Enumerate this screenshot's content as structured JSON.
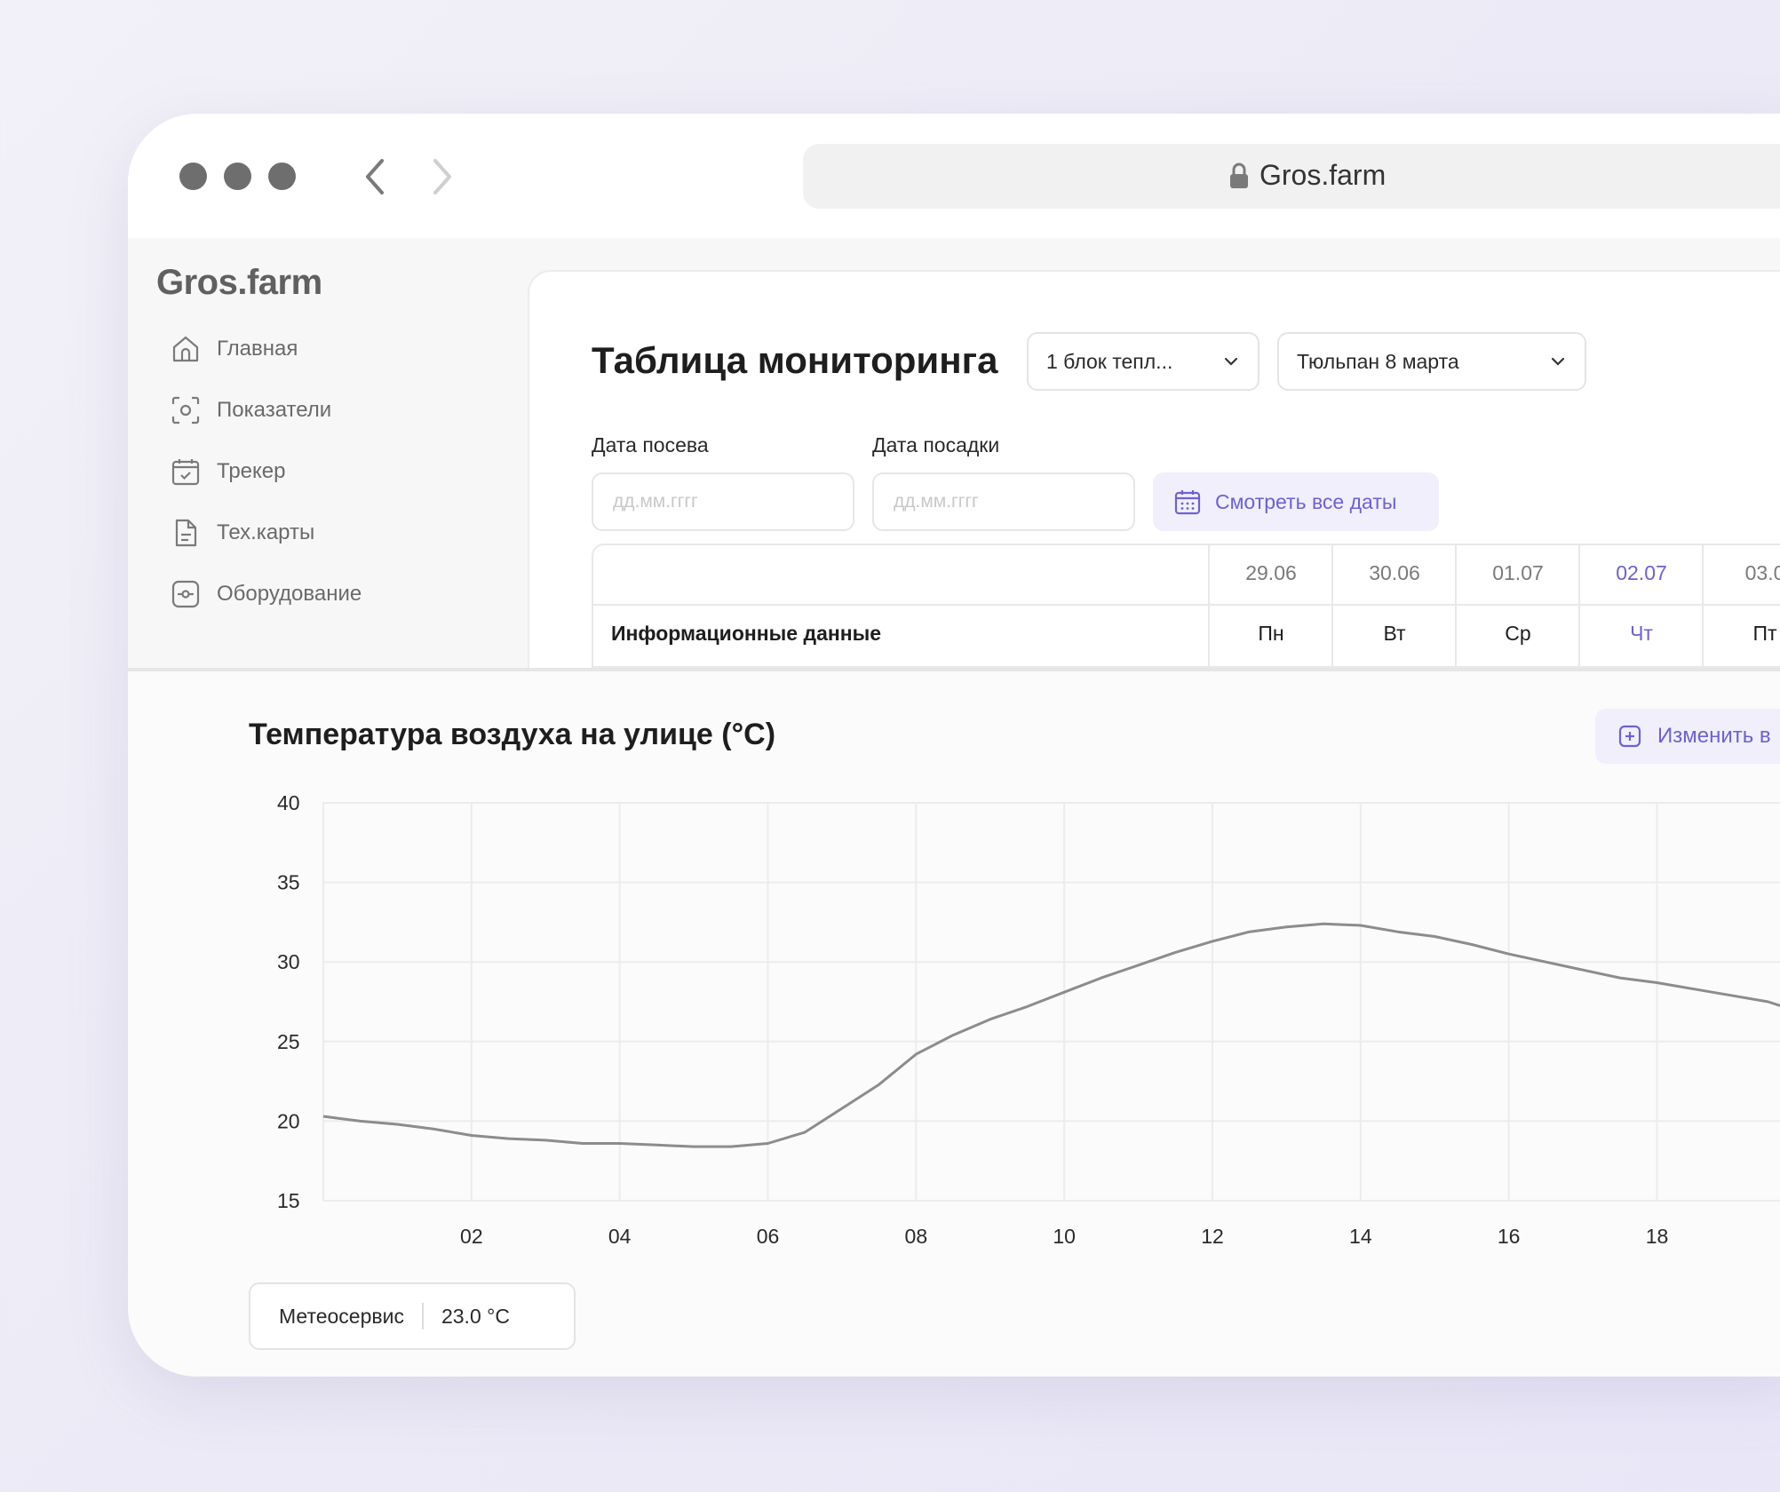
{
  "browser": {
    "url": "Gros.farm"
  },
  "app": {
    "logo": "Gros.farm",
    "sidebar": {
      "items": [
        {
          "label": "Главная",
          "icon": "home-icon"
        },
        {
          "label": "Показатели",
          "icon": "indicators-icon"
        },
        {
          "label": "Трекер",
          "icon": "calendar-check-icon"
        },
        {
          "label": "Тех.карты",
          "icon": "document-icon"
        },
        {
          "label": "Оборудование",
          "icon": "equipment-icon"
        }
      ]
    },
    "monitoring": {
      "title": "Таблица мониторинга",
      "greenhouse_select": "1 блок тепл...",
      "crop_select": "Тюльпан 8 марта",
      "sowing_label": "Дата посева",
      "sowing_placeholder": "дд.мм.гггг",
      "planting_label": "Дата посадки",
      "planting_placeholder": "дд.мм.гггг",
      "all_dates_button": "Смотреть все даты",
      "table": {
        "info_label": "Информационные данные",
        "columns": [
          {
            "date": "29.06",
            "day": "Пн",
            "active": false
          },
          {
            "date": "30.06",
            "day": "Вт",
            "active": false
          },
          {
            "date": "01.07",
            "day": "Ср",
            "active": false
          },
          {
            "date": "02.07",
            "day": "Чт",
            "active": true
          },
          {
            "date": "03.0",
            "day": "Пт",
            "active": false
          }
        ]
      }
    },
    "chart_section": {
      "edit_button": "Изменить в",
      "meteo_label": "Метеосервис",
      "meteo_value": "23.0 °C"
    }
  },
  "colors": {
    "accent": "#6d61d6",
    "line": "#8c8c8c"
  },
  "chart_data": {
    "type": "line",
    "title": "Температура воздуха на улице (°C)",
    "xlabel": "",
    "ylabel": "",
    "ylim": [
      15,
      40
    ],
    "xlim": [
      0,
      19.9
    ],
    "y_ticks": [
      "15",
      "20",
      "25",
      "30",
      "35",
      "40"
    ],
    "x_ticks": [
      "02",
      "04",
      "06",
      "08",
      "10",
      "12",
      "14",
      "16",
      "18"
    ],
    "grid": true,
    "series": [
      {
        "x": [
          0,
          0.5,
          1,
          1.5,
          2,
          2.5,
          3,
          3.5,
          4,
          4.5,
          5,
          5.5,
          6,
          6.5,
          7,
          7.5,
          8,
          8.5,
          9,
          9.5,
          10,
          10.5,
          11,
          11.5,
          12,
          12.5,
          13,
          13.5,
          14,
          14.5,
          15,
          15.5,
          16,
          16.5,
          17,
          17.5,
          18,
          18.5,
          19,
          19.5,
          19.9
        ],
        "y": [
          20.3,
          20.0,
          19.8,
          19.5,
          19.1,
          18.9,
          18.8,
          18.6,
          18.6,
          18.5,
          18.4,
          18.4,
          18.6,
          19.3,
          20.8,
          22.3,
          24.2,
          25.4,
          26.4,
          27.2,
          28.1,
          29.0,
          29.8,
          30.6,
          31.3,
          31.9,
          32.2,
          32.4,
          32.3,
          31.9,
          31.6,
          31.1,
          30.5,
          30.0,
          29.5,
          29.0,
          28.7,
          28.3,
          27.9,
          27.5,
          26.9
        ]
      }
    ]
  }
}
